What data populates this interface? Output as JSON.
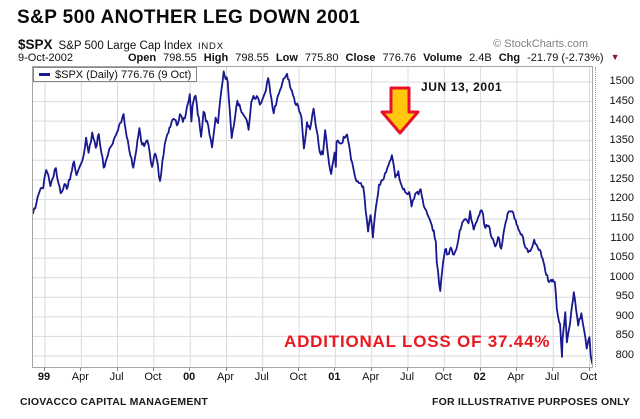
{
  "title": "S&P 500 ANOTHER LEG DOWN 2001",
  "header": {
    "symbol": "$SPX",
    "name": "S&P 500 Large Cap Index",
    "exchange": "INDX",
    "copyright": "© StockCharts.com",
    "date": "9-Oct-2002",
    "fields": [
      {
        "label": "Open",
        "value": "798.55"
      },
      {
        "label": "High",
        "value": "798.55"
      },
      {
        "label": "Low",
        "value": "775.80"
      },
      {
        "label": "Close",
        "value": "776.76"
      },
      {
        "label": "Volume",
        "value": "2.4B"
      },
      {
        "label": "Chg",
        "value": "-21.79 (-2.73%)"
      }
    ],
    "chg_direction": "down"
  },
  "icons": {
    "chg_down_triangle": "▼"
  },
  "legend": {
    "label": "$SPX (Daily) 776.76 (9 Oct)"
  },
  "annotations": {
    "event_label": "JUN 13, 2001",
    "loss_label": "ADDITIONAL LOSS OF 37.44%",
    "arrow": {
      "shape": "block-down-arrow",
      "month": 29.4,
      "fill": "#FFC60B",
      "stroke": "#E8112D"
    }
  },
  "footer": {
    "left": "CIOVACCO CAPITAL MANAGEMENT",
    "right": "FOR ILLUSTRATIVE PURPOSES ONLY"
  },
  "colors": {
    "line": "#181890",
    "grid": "#dadada",
    "plot_border": "#a6a6a6",
    "loss_text": "#e8191f",
    "chg_triangle": "#8b1a2c",
    "copyright_gray": "#808080"
  },
  "chart_data": {
    "type": "line",
    "title": "S&P 500 ANOTHER LEG DOWN 2001",
    "xlabel": "",
    "ylabel": "",
    "x_unit": "months since Jan-1999 (data runs Dec-1998 to 9-Oct-2002)",
    "ylim": [
      766,
      1538
    ],
    "grid": true,
    "legend_position": "top-left",
    "y_ticks": [
      1500,
      1450,
      1400,
      1350,
      1300,
      1250,
      1200,
      1150,
      1100,
      1050,
      1000,
      950,
      900,
      850,
      800
    ],
    "x_ticks": [
      {
        "label": "99",
        "month": 0,
        "bold": true
      },
      {
        "label": "Apr",
        "month": 3,
        "bold": false
      },
      {
        "label": "Jul",
        "month": 6,
        "bold": false
      },
      {
        "label": "Oct",
        "month": 9,
        "bold": false
      },
      {
        "label": "00",
        "month": 12,
        "bold": true
      },
      {
        "label": "Apr",
        "month": 15,
        "bold": false
      },
      {
        "label": "Jul",
        "month": 18,
        "bold": false
      },
      {
        "label": "Oct",
        "month": 21,
        "bold": false
      },
      {
        "label": "01",
        "month": 24,
        "bold": true
      },
      {
        "label": "Apr",
        "month": 27,
        "bold": false
      },
      {
        "label": "Jul",
        "month": 30,
        "bold": false
      },
      {
        "label": "Oct",
        "month": 33,
        "bold": false
      },
      {
        "label": "02",
        "month": 36,
        "bold": true
      },
      {
        "label": "Apr",
        "month": 39,
        "bold": false
      },
      {
        "label": "Jul",
        "month": 42,
        "bold": false
      },
      {
        "label": "Oct",
        "month": 45,
        "bold": false
      }
    ],
    "last_point": {
      "date": "9-Oct-2002",
      "close": 776.76
    },
    "series": [
      {
        "name": "$SPX (Daily)",
        "color": "#181890",
        "points": [
          [
            -1,
            1163
          ],
          [
            -0.7,
            1192
          ],
          [
            -0.4,
            1225
          ],
          [
            -0.15,
            1229
          ],
          [
            0.1,
            1275
          ],
          [
            0.45,
            1234
          ],
          [
            0.6,
            1252
          ],
          [
            0.9,
            1280
          ],
          [
            1.1,
            1243
          ],
          [
            1.3,
            1216
          ],
          [
            1.6,
            1239
          ],
          [
            1.8,
            1227
          ],
          [
            2.15,
            1265
          ],
          [
            2.4,
            1297
          ],
          [
            2.6,
            1262
          ],
          [
            2.9,
            1286
          ],
          [
            3.1,
            1300
          ],
          [
            3.4,
            1358
          ],
          [
            3.6,
            1319
          ],
          [
            3.9,
            1371
          ],
          [
            4.2,
            1332
          ],
          [
            4.45,
            1367
          ],
          [
            4.85,
            1281
          ],
          [
            5.1,
            1304
          ],
          [
            5.3,
            1327
          ],
          [
            5.6,
            1343
          ],
          [
            5.95,
            1372
          ],
          [
            6.2,
            1395
          ],
          [
            6.5,
            1418
          ],
          [
            6.75,
            1360
          ],
          [
            6.95,
            1328
          ],
          [
            7.15,
            1305
          ],
          [
            7.3,
            1281
          ],
          [
            7.55,
            1327
          ],
          [
            7.8,
            1382
          ],
          [
            7.95,
            1348
          ],
          [
            8.2,
            1336
          ],
          [
            8.45,
            1351
          ],
          [
            8.85,
            1283
          ],
          [
            9.1,
            1317
          ],
          [
            9.25,
            1301
          ],
          [
            9.5,
            1247
          ],
          [
            9.9,
            1342
          ],
          [
            10.2,
            1370
          ],
          [
            10.45,
            1396
          ],
          [
            10.7,
            1404
          ],
          [
            10.9,
            1389
          ],
          [
            11.15,
            1418
          ],
          [
            11.4,
            1398
          ],
          [
            11.65,
            1421
          ],
          [
            11.97,
            1469
          ],
          [
            12.1,
            1399
          ],
          [
            12.2,
            1441
          ],
          [
            12.45,
            1465
          ],
          [
            12.9,
            1360
          ],
          [
            13.1,
            1424
          ],
          [
            13.5,
            1388
          ],
          [
            13.8,
            1333
          ],
          [
            14.1,
            1409
          ],
          [
            14.3,
            1395
          ],
          [
            14.5,
            1458
          ],
          [
            14.77,
            1527
          ],
          [
            15.1,
            1501
          ],
          [
            15.43,
            1357
          ],
          [
            15.9,
            1452
          ],
          [
            16.15,
            1433
          ],
          [
            16.6,
            1407
          ],
          [
            16.83,
            1378
          ],
          [
            17.05,
            1449
          ],
          [
            17.5,
            1464
          ],
          [
            17.75,
            1442
          ],
          [
            17.97,
            1455
          ],
          [
            18.45,
            1510
          ],
          [
            18.9,
            1420
          ],
          [
            19.2,
            1460
          ],
          [
            19.35,
            1472
          ],
          [
            19.7,
            1508
          ],
          [
            20,
            1521
          ],
          [
            20.5,
            1466
          ],
          [
            20.93,
            1437
          ],
          [
            21.2,
            1409
          ],
          [
            21.4,
            1330
          ],
          [
            21.65,
            1397
          ],
          [
            21.9,
            1379
          ],
          [
            22.2,
            1432
          ],
          [
            22.7,
            1322
          ],
          [
            22.97,
            1315
          ],
          [
            23.15,
            1377
          ],
          [
            23.4,
            1312
          ],
          [
            23.65,
            1265
          ],
          [
            23.93,
            1320
          ],
          [
            24.03,
            1283
          ],
          [
            24.1,
            1348
          ],
          [
            24.5,
            1343
          ],
          [
            24.97,
            1366
          ],
          [
            25.3,
            1301
          ],
          [
            25.75,
            1246
          ],
          [
            26.3,
            1233
          ],
          [
            26.7,
            1118
          ],
          [
            26.9,
            1160
          ],
          [
            27.1,
            1103
          ],
          [
            27.35,
            1180
          ],
          [
            27.6,
            1238
          ],
          [
            27.9,
            1249
          ],
          [
            28.1,
            1267
          ],
          [
            28.4,
            1288
          ],
          [
            28.67,
            1313
          ],
          [
            28.95,
            1256
          ],
          [
            29.2,
            1272
          ],
          [
            29.4,
            1242
          ],
          [
            29.6,
            1225
          ],
          [
            29.85,
            1217
          ],
          [
            30.1,
            1219
          ],
          [
            30.3,
            1182
          ],
          [
            30.6,
            1215
          ],
          [
            31.05,
            1226
          ],
          [
            31.3,
            1184
          ],
          [
            31.6,
            1162
          ],
          [
            31.97,
            1134
          ],
          [
            32.3,
            1093
          ],
          [
            32.38,
            1038
          ],
          [
            32.67,
            966
          ],
          [
            32.9,
            1040
          ],
          [
            33.07,
            1072
          ],
          [
            33.3,
            1060
          ],
          [
            33.53,
            1077
          ],
          [
            33.8,
            1059
          ],
          [
            34.1,
            1087
          ],
          [
            34.27,
            1120
          ],
          [
            34.5,
            1142
          ],
          [
            34.73,
            1150
          ],
          [
            35,
            1139
          ],
          [
            35.13,
            1170
          ],
          [
            35.43,
            1123
          ],
          [
            35.7,
            1145
          ],
          [
            35.9,
            1161
          ],
          [
            36.1,
            1172
          ],
          [
            36.4,
            1127
          ],
          [
            36.65,
            1133
          ],
          [
            36.93,
            1101
          ],
          [
            37.2,
            1080
          ],
          [
            37.45,
            1104
          ],
          [
            37.7,
            1074
          ],
          [
            38,
            1131
          ],
          [
            38.23,
            1164
          ],
          [
            38.6,
            1170
          ],
          [
            38.9,
            1147
          ],
          [
            39.13,
            1123
          ],
          [
            39.4,
            1111
          ],
          [
            39.7,
            1077
          ],
          [
            39.93,
            1065
          ],
          [
            40.2,
            1074
          ],
          [
            40.43,
            1097
          ],
          [
            40.7,
            1079
          ],
          [
            40.97,
            1067
          ],
          [
            41.2,
            1040
          ],
          [
            41.43,
            1007
          ],
          [
            41.67,
            989
          ],
          [
            41.9,
            990
          ],
          [
            42.13,
            989
          ],
          [
            42.3,
            921
          ],
          [
            42.57,
            881
          ],
          [
            42.73,
            798
          ],
          [
            42.77,
            843
          ],
          [
            43,
            912
          ],
          [
            43.13,
            835
          ],
          [
            43.4,
            884
          ],
          [
            43.55,
            928
          ],
          [
            43.7,
            963
          ],
          [
            43.9,
            916
          ],
          [
            44.07,
            878
          ],
          [
            44.33,
            909
          ],
          [
            44.55,
            866
          ],
          [
            44.77,
            819
          ],
          [
            45,
            848
          ],
          [
            45.1,
            801
          ],
          [
            45.2,
            785
          ],
          [
            45.27,
            777
          ]
        ]
      }
    ]
  }
}
